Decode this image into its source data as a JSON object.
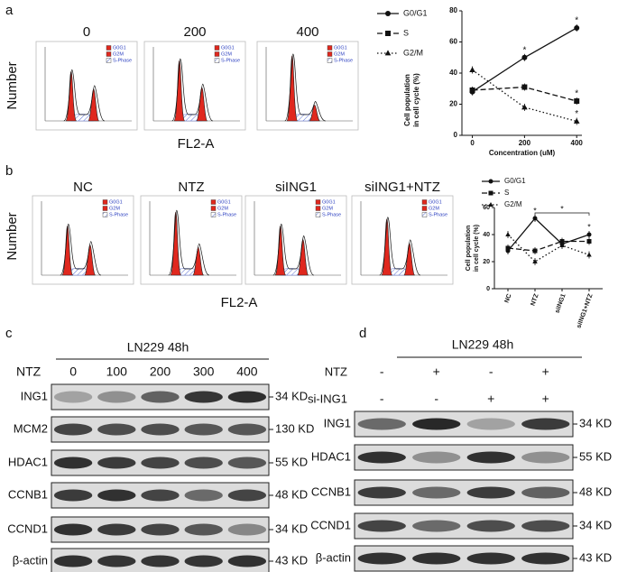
{
  "panel_labels": [
    "a",
    "b",
    "c",
    "d"
  ],
  "a": {
    "histograms": {
      "titles": [
        "0",
        "200",
        "400"
      ],
      "legend": [
        "G0G1",
        "G2M",
        "S-Phase"
      ],
      "y_label": "Number",
      "x_label": "FL2-A"
    },
    "line": {
      "type": "line",
      "y_label": [
        "Cell population",
        "in cell cycle (%)"
      ],
      "x_label": "Concentration (uM)",
      "x": [
        0,
        200,
        400
      ],
      "xlim": [
        -40,
        420
      ],
      "xticks": [
        0,
        200,
        400
      ],
      "ylim": [
        0,
        80
      ],
      "yticks": [
        0,
        20,
        40,
        60,
        80
      ],
      "series": [
        {
          "name": "G0/G1",
          "marker": "circle",
          "dash": "none",
          "values": [
            28,
            50,
            69
          ],
          "annotations": [
            null,
            "*",
            "*"
          ]
        },
        {
          "name": "S",
          "marker": "square",
          "dash": "6 3",
          "values": [
            29,
            31,
            22
          ],
          "annotations": [
            null,
            null,
            "*"
          ]
        },
        {
          "name": "G2/M",
          "marker": "triangle",
          "dash": "1.5 2.5",
          "values": [
            42,
            18,
            9
          ],
          "annotations": [
            null,
            null,
            "*"
          ]
        }
      ]
    }
  },
  "b": {
    "histograms": {
      "titles": [
        "NC",
        "NTZ",
        "siING1",
        "siING1+NTZ"
      ],
      "legend": [
        "G0G1",
        "G2M",
        "S-Phase"
      ],
      "y_label": "Number",
      "x_label": "FL2-A"
    },
    "line": {
      "type": "line",
      "y_label": [
        "Cell population",
        "in cell cycle (%)"
      ],
      "categories": [
        "NC",
        "NTZ",
        "siING1",
        "siING1+NTZ"
      ],
      "ylim": [
        0,
        60
      ],
      "yticks": [
        0,
        20,
        40,
        60
      ],
      "bracket": "*",
      "series": [
        {
          "name": "G0/G1",
          "marker": "circle",
          "dash": "none",
          "values": [
            28,
            52,
            33,
            40
          ],
          "annotations": [
            null,
            "*",
            null,
            "*"
          ]
        },
        {
          "name": "S",
          "marker": "square",
          "dash": "6 3",
          "values": [
            30,
            28,
            35,
            35
          ],
          "annotations": [
            null,
            null,
            null,
            null
          ]
        },
        {
          "name": "G2/M",
          "marker": "triangle",
          "dash": "1.5 2.5",
          "values": [
            40,
            20,
            32,
            25
          ],
          "annotations": [
            null,
            null,
            null,
            null
          ]
        }
      ]
    }
  },
  "c": {
    "title": "LN229 48h",
    "treatment_label": "NTZ",
    "lanes": [
      "0",
      "100",
      "200",
      "300",
      "400"
    ],
    "rows": [
      {
        "name": "ING1",
        "size": "34 KD"
      },
      {
        "name": "MCM2",
        "size": "130 KD"
      },
      {
        "name": "HDAC1",
        "size": "55 KD"
      },
      {
        "name": "CCNB1",
        "size": "48 KD"
      },
      {
        "name": "CCND1",
        "size": "34 KD"
      },
      {
        "name": "β-actin",
        "size": "43 KD"
      }
    ]
  },
  "d": {
    "title": "LN229 48h",
    "conditions": [
      {
        "label": "NTZ",
        "signs": [
          "-",
          "+",
          "-",
          "+"
        ]
      },
      {
        "label": "si-ING1",
        "signs": [
          "-",
          "-",
          "+",
          "+"
        ]
      }
    ],
    "rows": [
      {
        "name": "ING1",
        "size": "34 KD"
      },
      {
        "name": "HDAC1",
        "size": "55 KD"
      },
      {
        "name": "CCNB1",
        "size": "48 KD"
      },
      {
        "name": "CCND1",
        "size": "34 KD"
      },
      {
        "name": "β-actin",
        "size": "43 KD"
      }
    ]
  }
}
